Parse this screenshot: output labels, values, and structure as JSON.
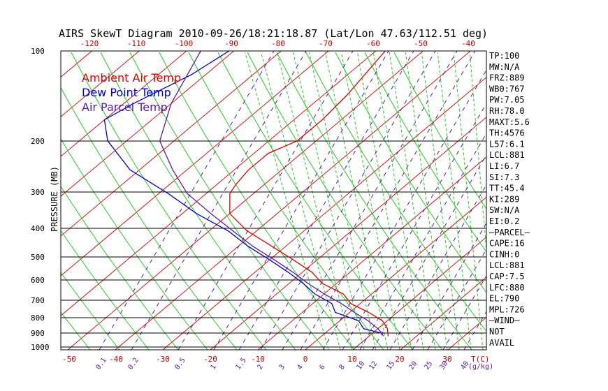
{
  "chart_data": {
    "type": "line",
    "title": "AIRS SkewT Diagram 2010-09-26/18:21:18.87 (Lat/Lon 47.63/112.51 deg)",
    "ylabel": "PRESSURE (MB)",
    "pressure_ticks": [
      100,
      200,
      300,
      400,
      500,
      600,
      700,
      800,
      900,
      1000
    ],
    "temp_ticks_top": [
      -120,
      -110,
      -100,
      -90,
      -80,
      -70,
      -60,
      -50,
      -40
    ],
    "temp_ticks_bottom": [
      -50,
      -40,
      -30,
      -20,
      -10,
      0,
      10,
      20,
      30
    ],
    "temp_unit_label": "T(C)",
    "mixing_ratio_labels": [
      "0.1",
      "0.2",
      "0.5",
      "1",
      "1.5",
      "2",
      "3",
      "4",
      "6",
      "8",
      "10",
      "12",
      "15",
      "20",
      "25",
      "30",
      "40"
    ],
    "mixing_ratio_unit": "(g/kg)",
    "legend": [
      {
        "label": "Ambient Air Temp",
        "color": "#e00000"
      },
      {
        "label": "Dew Point Temp",
        "color": "#0000cc"
      },
      {
        "label": "Air Parcel Temp",
        "color": "#5a1aa8"
      }
    ],
    "series": [
      {
        "name": "Ambient Air Temp",
        "color": "#e00000",
        "points": [
          [
            100,
            -58
          ],
          [
            140,
            -55
          ],
          [
            170,
            -54
          ],
          [
            200,
            -54
          ],
          [
            220,
            -57
          ],
          [
            250,
            -57
          ],
          [
            280,
            -56
          ],
          [
            300,
            -55
          ],
          [
            350,
            -50
          ],
          [
            400,
            -42
          ],
          [
            450,
            -33
          ],
          [
            500,
            -25
          ],
          [
            550,
            -18
          ],
          [
            600,
            -13
          ],
          [
            650,
            -6
          ],
          [
            700,
            -2
          ],
          [
            750,
            4
          ],
          [
            800,
            9
          ],
          [
            850,
            12
          ],
          [
            900,
            14
          ]
        ]
      },
      {
        "name": "Dew Point Temp",
        "color": "#0000cc",
        "points": [
          [
            100,
            -91
          ],
          [
            120,
            -93
          ],
          [
            150,
            -98
          ],
          [
            170,
            -100
          ],
          [
            200,
            -94
          ],
          [
            250,
            -82
          ],
          [
            300,
            -68
          ],
          [
            350,
            -57
          ],
          [
            400,
            -46
          ],
          [
            450,
            -38
          ],
          [
            500,
            -30
          ],
          [
            550,
            -23
          ],
          [
            600,
            -17
          ],
          [
            650,
            -12
          ],
          [
            700,
            -6
          ],
          [
            750,
            -3
          ],
          [
            800,
            4
          ],
          [
            850,
            7
          ],
          [
            880,
            12
          ]
        ]
      },
      {
        "name": "Air Parcel Temp",
        "color": "#5a1aa8",
        "points": [
          [
            100,
            -97
          ],
          [
            150,
            -90
          ],
          [
            200,
            -83
          ],
          [
            250,
            -73
          ],
          [
            300,
            -64
          ],
          [
            350,
            -54
          ],
          [
            400,
            -45
          ],
          [
            450,
            -37
          ],
          [
            500,
            -29
          ],
          [
            550,
            -22
          ],
          [
            600,
            -16
          ],
          [
            650,
            -10
          ],
          [
            700,
            -4
          ],
          [
            750,
            1
          ],
          [
            800,
            6
          ],
          [
            850,
            10
          ],
          [
            880,
            12
          ],
          [
            900,
            13
          ]
        ]
      }
    ]
  },
  "stats": [
    "TP:100",
    "MW:N/A",
    "FRZ:889",
    "WB0:767",
    "PW:7.05",
    "RH:78.0",
    "MAXT:5.6",
    "TH:4576",
    "L57:6.1",
    "LCL:881",
    "LI:6.7",
    "SI:7.3",
    "TT:45.4",
    "KI:289",
    "SW:N/A",
    "EI:0.2",
    "—PARCEL—",
    "CAPE:16",
    "CINH:0",
    "LCL:881",
    "CAP:7.5",
    "LFC:880",
    "EL:790",
    "MPL:726",
    "—WIND—",
    "NOT",
    "AVAIL"
  ]
}
